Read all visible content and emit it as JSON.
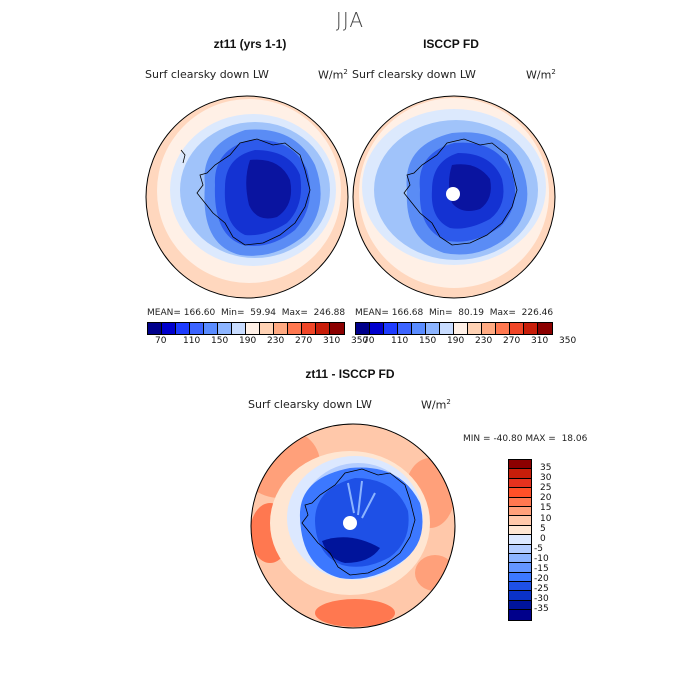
{
  "season": "JJA",
  "panels": [
    {
      "title": "zt11 (yrs 1-1)",
      "variable": "Surf clearsky down LW",
      "units": "W/m",
      "units_sup": "2",
      "mean_label": "MEAN=",
      "mean": "166.60",
      "min_label": "Min=",
      "min": "59.94",
      "max_label": "Max=",
      "max": "246.88"
    },
    {
      "title": "ISCCP FD",
      "variable": "Surf clearsky down LW",
      "units": "W/m",
      "units_sup": "2",
      "mean_label": "MEAN=",
      "mean": "166.68",
      "min_label": "Min=",
      "min": "80.19",
      "max_label": "Max=",
      "max": "226.46"
    }
  ],
  "top_colorbar": {
    "colors": [
      "#00008b",
      "#0000cd",
      "#1e3cff",
      "#3c64ff",
      "#5a8cff",
      "#8cb4ff",
      "#c8dcff",
      "#fff0e6",
      "#ffd2b4",
      "#ffaa82",
      "#ff7850",
      "#f04628",
      "#c81e0a",
      "#8b0000"
    ],
    "ticks": [
      "70",
      "110",
      "150",
      "190",
      "230",
      "270",
      "310",
      "350"
    ]
  },
  "diff": {
    "title": "zt11 - ISCCP FD",
    "variable": "Surf clearsky down LW",
    "units": "W/m",
    "units_sup": "2",
    "min_label": "MIN =",
    "min": "-40.80",
    "max_label": "MAX =",
    "max": "18.06"
  },
  "diff_colorbar": {
    "colors": [
      "#8b0000",
      "#c81e0a",
      "#e6321e",
      "#ff5028",
      "#ff7850",
      "#ffa07a",
      "#ffc8aa",
      "#ffe6d2",
      "#dce8ff",
      "#b4cdff",
      "#8cb4ff",
      "#6496ff",
      "#3c78ff",
      "#1e50e6",
      "#0a32c8",
      "#00149b",
      "#00008b"
    ],
    "ticks": [
      "35",
      "30",
      "25",
      "20",
      "15",
      "10",
      "5",
      "0",
      "-5",
      "-10",
      "-15",
      "-20",
      "-25",
      "-30",
      "-35"
    ]
  },
  "map_colors": {
    "deep": "#0a14a0",
    "dark": "#1432d2",
    "mid": "#2d5aeb",
    "light": "#5a8cf5",
    "pale": "#a0c3fa",
    "ice": "#dce9fd",
    "cream": "#fff0e6",
    "peach": "#ffd7be",
    "salmon": "#ff9a70",
    "red": "#ff6a40"
  }
}
